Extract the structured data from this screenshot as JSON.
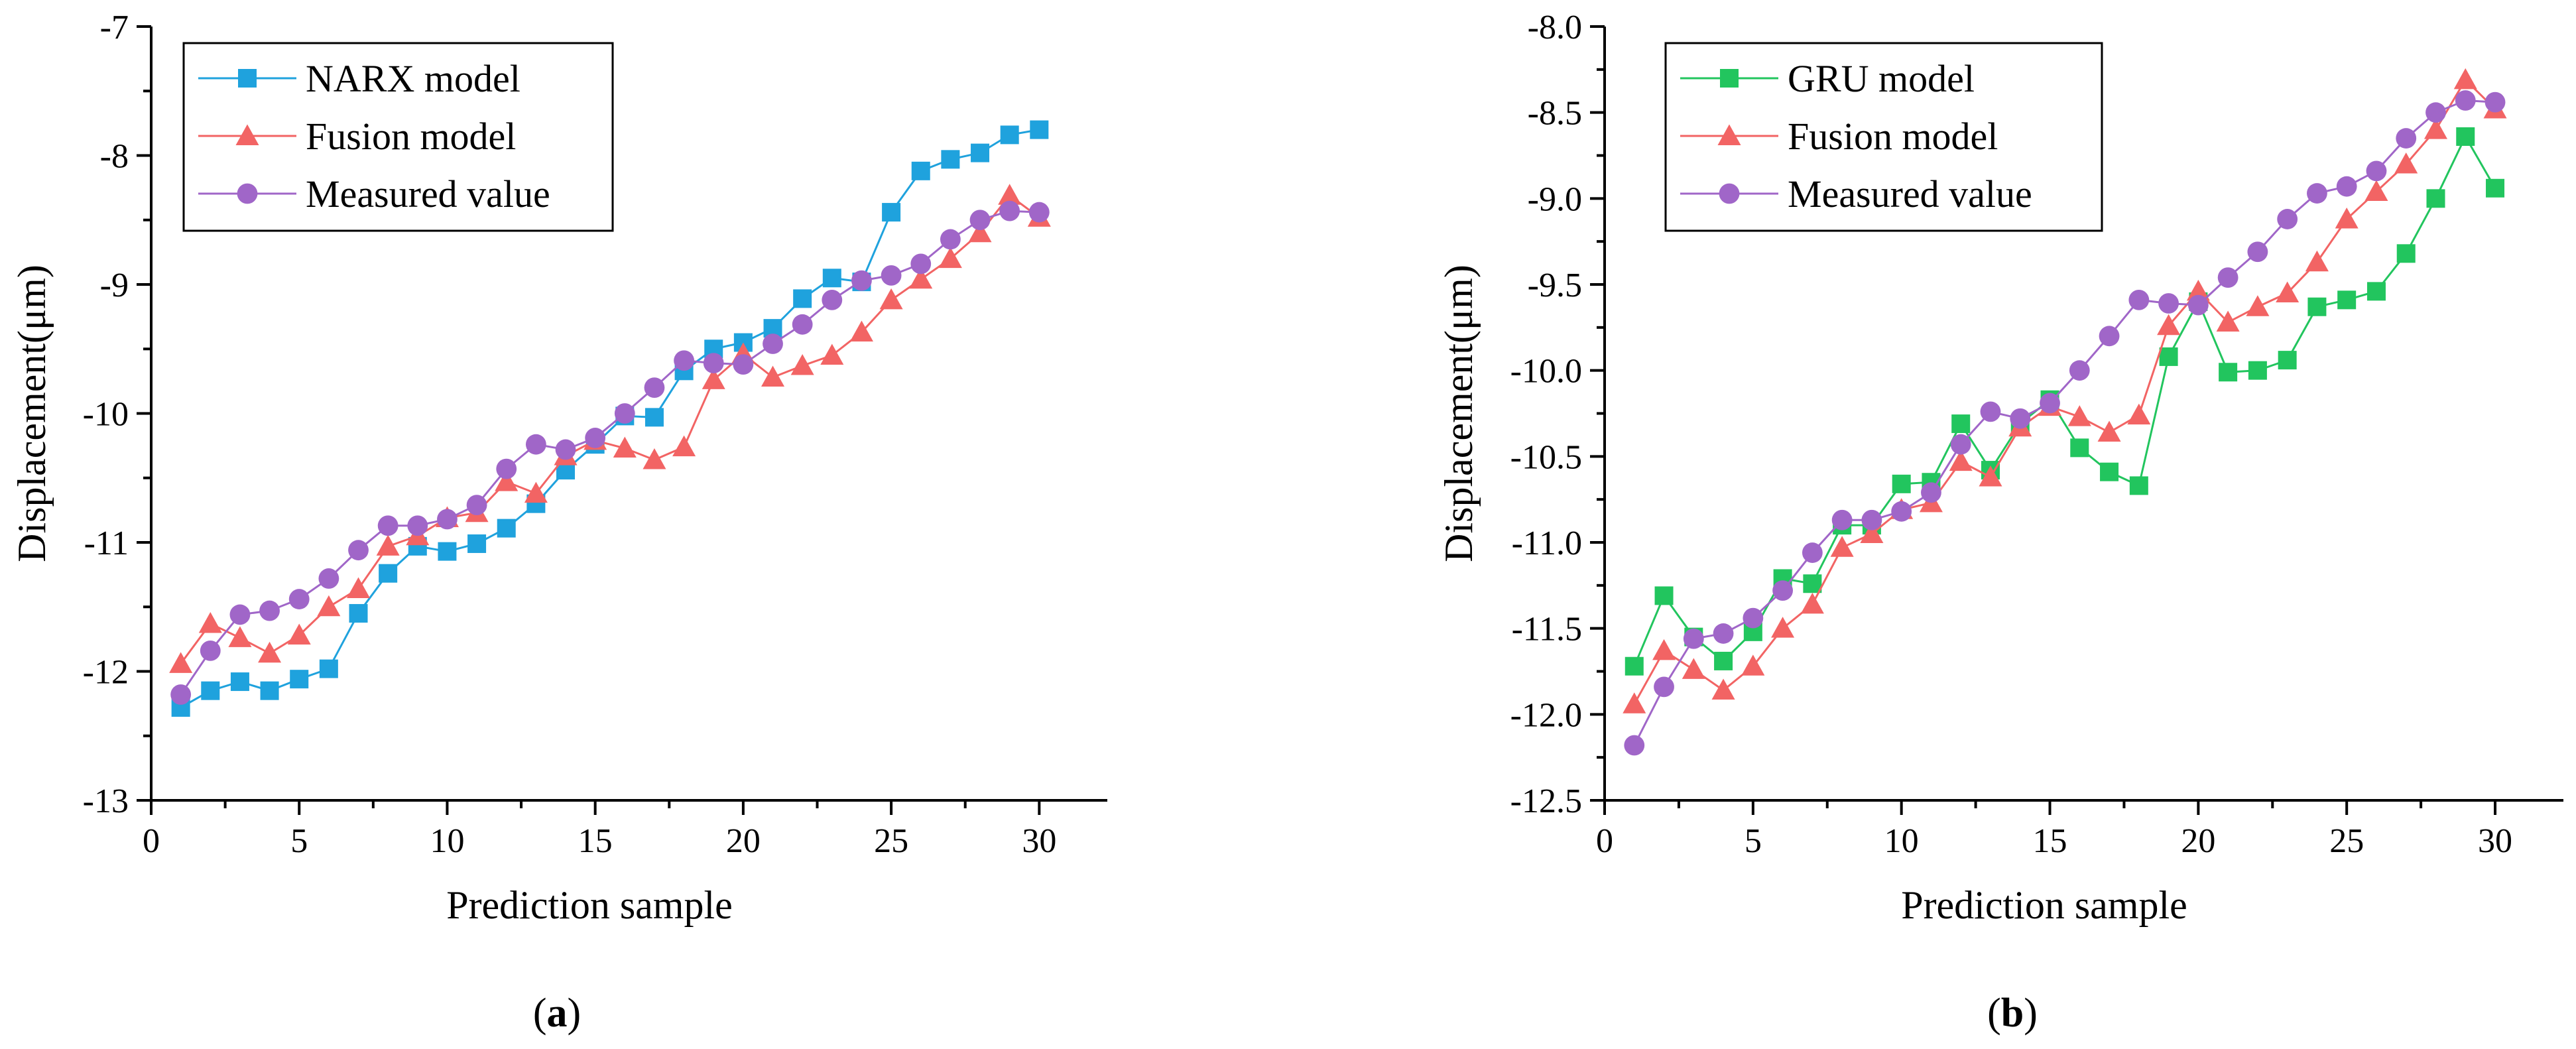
{
  "chart_data": [
    {
      "type": "line",
      "panel_label": "a",
      "xlabel": "Prediction sample",
      "ylabel": "Displacement(μm)",
      "xlim": [
        0,
        32.3
      ],
      "ylim": [
        -13,
        -7
      ],
      "xticks": [
        0,
        5,
        10,
        15,
        20,
        25,
        30
      ],
      "yticks": [
        -13,
        -12,
        -11,
        -10,
        -9,
        -8,
        -7
      ],
      "ytick_labels": [
        "-13",
        "-12",
        "-11",
        "-10",
        "-9",
        "-8",
        "-7"
      ],
      "x": [
        1,
        2,
        3,
        4,
        5,
        6,
        7,
        8,
        9,
        10,
        11,
        12,
        13,
        14,
        15,
        16,
        17,
        18,
        19,
        20,
        21,
        22,
        23,
        24,
        25,
        26,
        27,
        28,
        29,
        30
      ],
      "legend_position": "top-left",
      "series": [
        {
          "name": "NARX model",
          "marker": "square",
          "color": "#1fa2dd",
          "values": [
            -12.28,
            -12.15,
            -12.08,
            -12.15,
            -12.06,
            -11.98,
            -11.55,
            -11.24,
            -11.03,
            -11.07,
            -11.01,
            -10.89,
            -10.7,
            -10.44,
            -10.24,
            -10.02,
            -10.03,
            -9.67,
            -9.5,
            -9.45,
            -9.34,
            -9.11,
            -8.95,
            -8.98,
            -8.44,
            -8.12,
            -8.03,
            -7.98,
            -7.84,
            -7.8
          ]
        },
        {
          "name": "Fusion model",
          "marker": "triangle",
          "color": "#f26464",
          "values": [
            -11.94,
            -11.63,
            -11.74,
            -11.86,
            -11.72,
            -11.5,
            -11.36,
            -11.03,
            -10.95,
            -10.81,
            -10.77,
            -10.53,
            -10.62,
            -10.33,
            -10.21,
            -10.27,
            -10.36,
            -10.26,
            -9.74,
            -9.54,
            -9.72,
            -9.63,
            -9.55,
            -9.37,
            -9.12,
            -8.96,
            -8.8,
            -8.6,
            -8.31,
            -8.48
          ]
        },
        {
          "name": "Measured value",
          "marker": "circle",
          "color": "#a066c8",
          "values": [
            -12.18,
            -11.84,
            -11.56,
            -11.53,
            -11.44,
            -11.28,
            -11.06,
            -10.87,
            -10.87,
            -10.82,
            -10.71,
            -10.43,
            -10.24,
            -10.28,
            -10.19,
            -10.0,
            -9.8,
            -9.59,
            -9.61,
            -9.62,
            -9.46,
            -9.31,
            -9.12,
            -8.97,
            -8.93,
            -8.84,
            -8.65,
            -8.5,
            -8.43,
            -8.44
          ]
        }
      ]
    },
    {
      "type": "line",
      "panel_label": "b",
      "xlabel": "Prediction sample",
      "ylabel": "Displacement(μm)",
      "xlim": [
        0,
        32.3
      ],
      "ylim": [
        -12.5,
        -8.0
      ],
      "xticks": [
        0,
        5,
        10,
        15,
        20,
        25,
        30
      ],
      "yticks": [
        -12.5,
        -12.0,
        -11.5,
        -11.0,
        -10.5,
        -10.0,
        -9.5,
        -9.0,
        -8.5,
        -8.0
      ],
      "ytick_labels": [
        "-12.5",
        "-12.0",
        "-11.5",
        "-11.0",
        "-10.5",
        "-10.0",
        "-9.5",
        "-9.0",
        "-8.5",
        "-8.0"
      ],
      "x": [
        1,
        2,
        3,
        4,
        5,
        6,
        7,
        8,
        9,
        10,
        11,
        12,
        13,
        14,
        15,
        16,
        17,
        18,
        19,
        20,
        21,
        22,
        23,
        24,
        25,
        26,
        27,
        28,
        29,
        30
      ],
      "legend_position": "top-left",
      "series": [
        {
          "name": "GRU model",
          "marker": "square",
          "color": "#22c55e",
          "values": [
            -11.72,
            -11.31,
            -11.55,
            -11.69,
            -11.52,
            -11.21,
            -11.24,
            -10.9,
            -10.9,
            -10.66,
            -10.65,
            -10.31,
            -10.58,
            -10.31,
            -10.17,
            -10.45,
            -10.59,
            -10.67,
            -9.92,
            -9.6,
            -10.01,
            -10.0,
            -9.94,
            -9.63,
            -9.59,
            -9.54,
            -9.32,
            -9.0,
            -8.64,
            -8.94
          ]
        },
        {
          "name": "Fusion model",
          "marker": "triangle",
          "color": "#f26464",
          "values": [
            -11.94,
            -11.63,
            -11.74,
            -11.86,
            -11.72,
            -11.5,
            -11.36,
            -11.03,
            -10.95,
            -10.81,
            -10.77,
            -10.53,
            -10.62,
            -10.33,
            -10.21,
            -10.27,
            -10.36,
            -10.26,
            -9.74,
            -9.54,
            -9.72,
            -9.63,
            -9.55,
            -9.37,
            -9.12,
            -8.96,
            -8.8,
            -8.6,
            -8.31,
            -8.48
          ]
        },
        {
          "name": "Measured value",
          "marker": "circle",
          "color": "#a066c8",
          "values": [
            -12.18,
            -11.84,
            -11.56,
            -11.53,
            -11.44,
            -11.28,
            -11.06,
            -10.87,
            -10.87,
            -10.82,
            -10.71,
            -10.43,
            -10.24,
            -10.28,
            -10.19,
            -10.0,
            -9.8,
            -9.59,
            -9.61,
            -9.62,
            -9.46,
            -9.31,
            -9.12,
            -8.97,
            -8.93,
            -8.84,
            -8.65,
            -8.5,
            -8.43,
            -8.44
          ]
        }
      ]
    }
  ]
}
